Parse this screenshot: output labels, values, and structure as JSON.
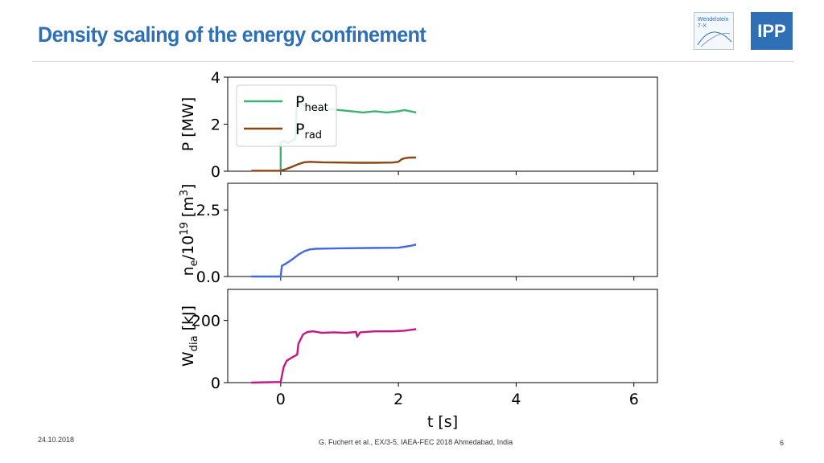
{
  "slide": {
    "title": "Density scaling of the energy confinement",
    "footer_date": "24.10.2018",
    "footer_citation": "G. Fuchert et al., EX/3-5, IAEA-FEC 2018 Ahmedabad, India",
    "page_number": "6"
  },
  "logos": {
    "w7x_line1": "Wendelstein",
    "w7x_line2": "7-X",
    "ipp_text": "IPP"
  },
  "colors": {
    "title": "#2f6fb5",
    "p_heat": "#3cb371",
    "p_rad": "#8b4513",
    "n_e": "#4169e1",
    "w_dia": "#c71585"
  },
  "chart_data": [
    {
      "type": "line",
      "ylabel": "P [MW]",
      "xlim": [
        -0.9,
        6.4
      ],
      "ylim": [
        0,
        4
      ],
      "yticks": [
        0,
        2,
        4
      ],
      "yticklabels": [
        "0",
        "2",
        "4"
      ],
      "legend": {
        "position": "top-left",
        "entries": [
          {
            "base": "P",
            "sub": "heat"
          },
          {
            "base": "P",
            "sub": "rad"
          }
        ]
      },
      "series": [
        {
          "name": "P_heat",
          "x": [
            0,
            0,
            0.05,
            0.12,
            0.2,
            0.25,
            0.27,
            0.3,
            0.4,
            0.5,
            0.6,
            0.8,
            1.0,
            1.2,
            1.4,
            1.6,
            1.8,
            2.0,
            2.1,
            2.2,
            2.3
          ],
          "y": [
            0,
            1.2,
            1.3,
            1.2,
            1.3,
            1.4,
            2.7,
            2.9,
            2.8,
            2.75,
            2.7,
            2.65,
            2.6,
            2.55,
            2.5,
            2.55,
            2.5,
            2.55,
            2.6,
            2.55,
            2.5
          ]
        },
        {
          "name": "P_rad",
          "x": [
            -0.5,
            0,
            0.1,
            0.2,
            0.3,
            0.4,
            0.5,
            0.7,
            1.0,
            1.3,
            1.6,
            1.9,
            2.0,
            2.05,
            2.1,
            2.2,
            2.3
          ],
          "y": [
            0.02,
            0.02,
            0.1,
            0.2,
            0.3,
            0.38,
            0.4,
            0.38,
            0.37,
            0.36,
            0.36,
            0.37,
            0.4,
            0.5,
            0.55,
            0.58,
            0.58
          ]
        }
      ]
    },
    {
      "type": "line",
      "ylabel": "n_e/10^19 [m^3]",
      "xlim": [
        -0.9,
        6.4
      ],
      "ylim": [
        0,
        3.5
      ],
      "yticks": [
        0,
        2.5
      ],
      "yticklabels": [
        "0.0",
        "2.5"
      ],
      "series": [
        {
          "name": "n_e",
          "x": [
            -0.5,
            0,
            0.02,
            0.1,
            0.2,
            0.3,
            0.4,
            0.5,
            0.6,
            0.8,
            1.0,
            1.5,
            2.0,
            2.2,
            2.3
          ],
          "y": [
            0,
            0,
            0.4,
            0.5,
            0.65,
            0.82,
            0.95,
            1.02,
            1.04,
            1.05,
            1.06,
            1.07,
            1.08,
            1.15,
            1.2
          ]
        }
      ]
    },
    {
      "type": "line",
      "ylabel": "W_dia [kJ]",
      "xlabel": "t [s]",
      "xlim": [
        -0.9,
        6.4
      ],
      "ylim": [
        0,
        300
      ],
      "yticks": [
        0,
        200
      ],
      "yticklabels": [
        "0",
        "200"
      ],
      "xticks": [
        0,
        2,
        4,
        6
      ],
      "xticklabels": [
        "0",
        "2",
        "4",
        "6"
      ],
      "series": [
        {
          "name": "W_dia",
          "x": [
            -0.5,
            0,
            0.05,
            0.1,
            0.2,
            0.28,
            0.3,
            0.38,
            0.45,
            0.55,
            0.7,
            0.9,
            1.1,
            1.28,
            1.3,
            1.35,
            1.6,
            1.9,
            2.1,
            2.3
          ],
          "y": [
            0,
            2,
            50,
            70,
            82,
            90,
            125,
            155,
            163,
            165,
            160,
            162,
            160,
            163,
            148,
            162,
            165,
            165,
            167,
            172
          ]
        }
      ]
    }
  ]
}
